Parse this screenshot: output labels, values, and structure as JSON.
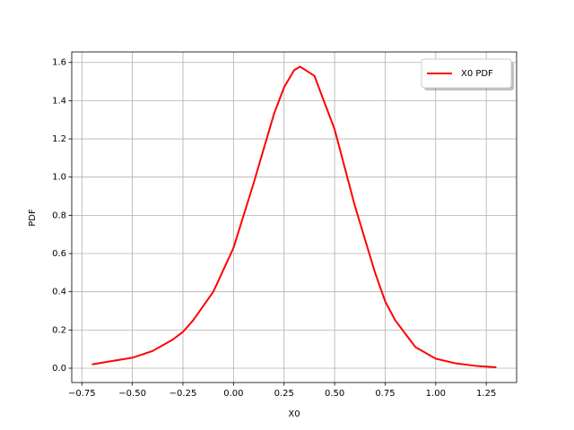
{
  "chart_data": {
    "type": "line",
    "xlabel": "X0",
    "ylabel": "PDF",
    "x": [
      -0.7,
      -0.5,
      -0.4,
      -0.3,
      -0.25,
      -0.2,
      -0.1,
      0.0,
      0.1,
      0.2,
      0.25,
      0.3,
      0.33,
      0.4,
      0.5,
      0.6,
      0.7,
      0.75,
      0.8,
      0.9,
      1.0,
      1.1,
      1.2,
      1.3
    ],
    "series": [
      {
        "name": "X0 PDF",
        "color": "#ff0000",
        "values": [
          0.02,
          0.055,
          0.09,
          0.15,
          0.19,
          0.25,
          0.4,
          0.63,
          0.97,
          1.33,
          1.47,
          1.56,
          1.578,
          1.53,
          1.25,
          0.85,
          0.5,
          0.35,
          0.25,
          0.11,
          0.05,
          0.025,
          0.012,
          0.005
        ]
      }
    ],
    "xlim": [
      -0.8,
      1.4
    ],
    "ylim": [
      -0.075,
      1.655
    ],
    "xticks": [
      {
        "value": -0.75,
        "label": "−0.75"
      },
      {
        "value": -0.5,
        "label": "−0.50"
      },
      {
        "value": -0.25,
        "label": "−0.25"
      },
      {
        "value": 0,
        "label": "0.00"
      },
      0.25,
      {
        "value": 0.5,
        "label": "0.50"
      },
      0.75,
      {
        "value": 1,
        "label": "1.00"
      },
      1.25
    ],
    "yticks": [
      {
        "value": 0,
        "label": "0.0"
      },
      0.2,
      0.4,
      0.6,
      0.8,
      {
        "value": 1,
        "label": "1.0"
      },
      1.2,
      1.4,
      1.6
    ],
    "grid": true,
    "legend": "upper right"
  }
}
